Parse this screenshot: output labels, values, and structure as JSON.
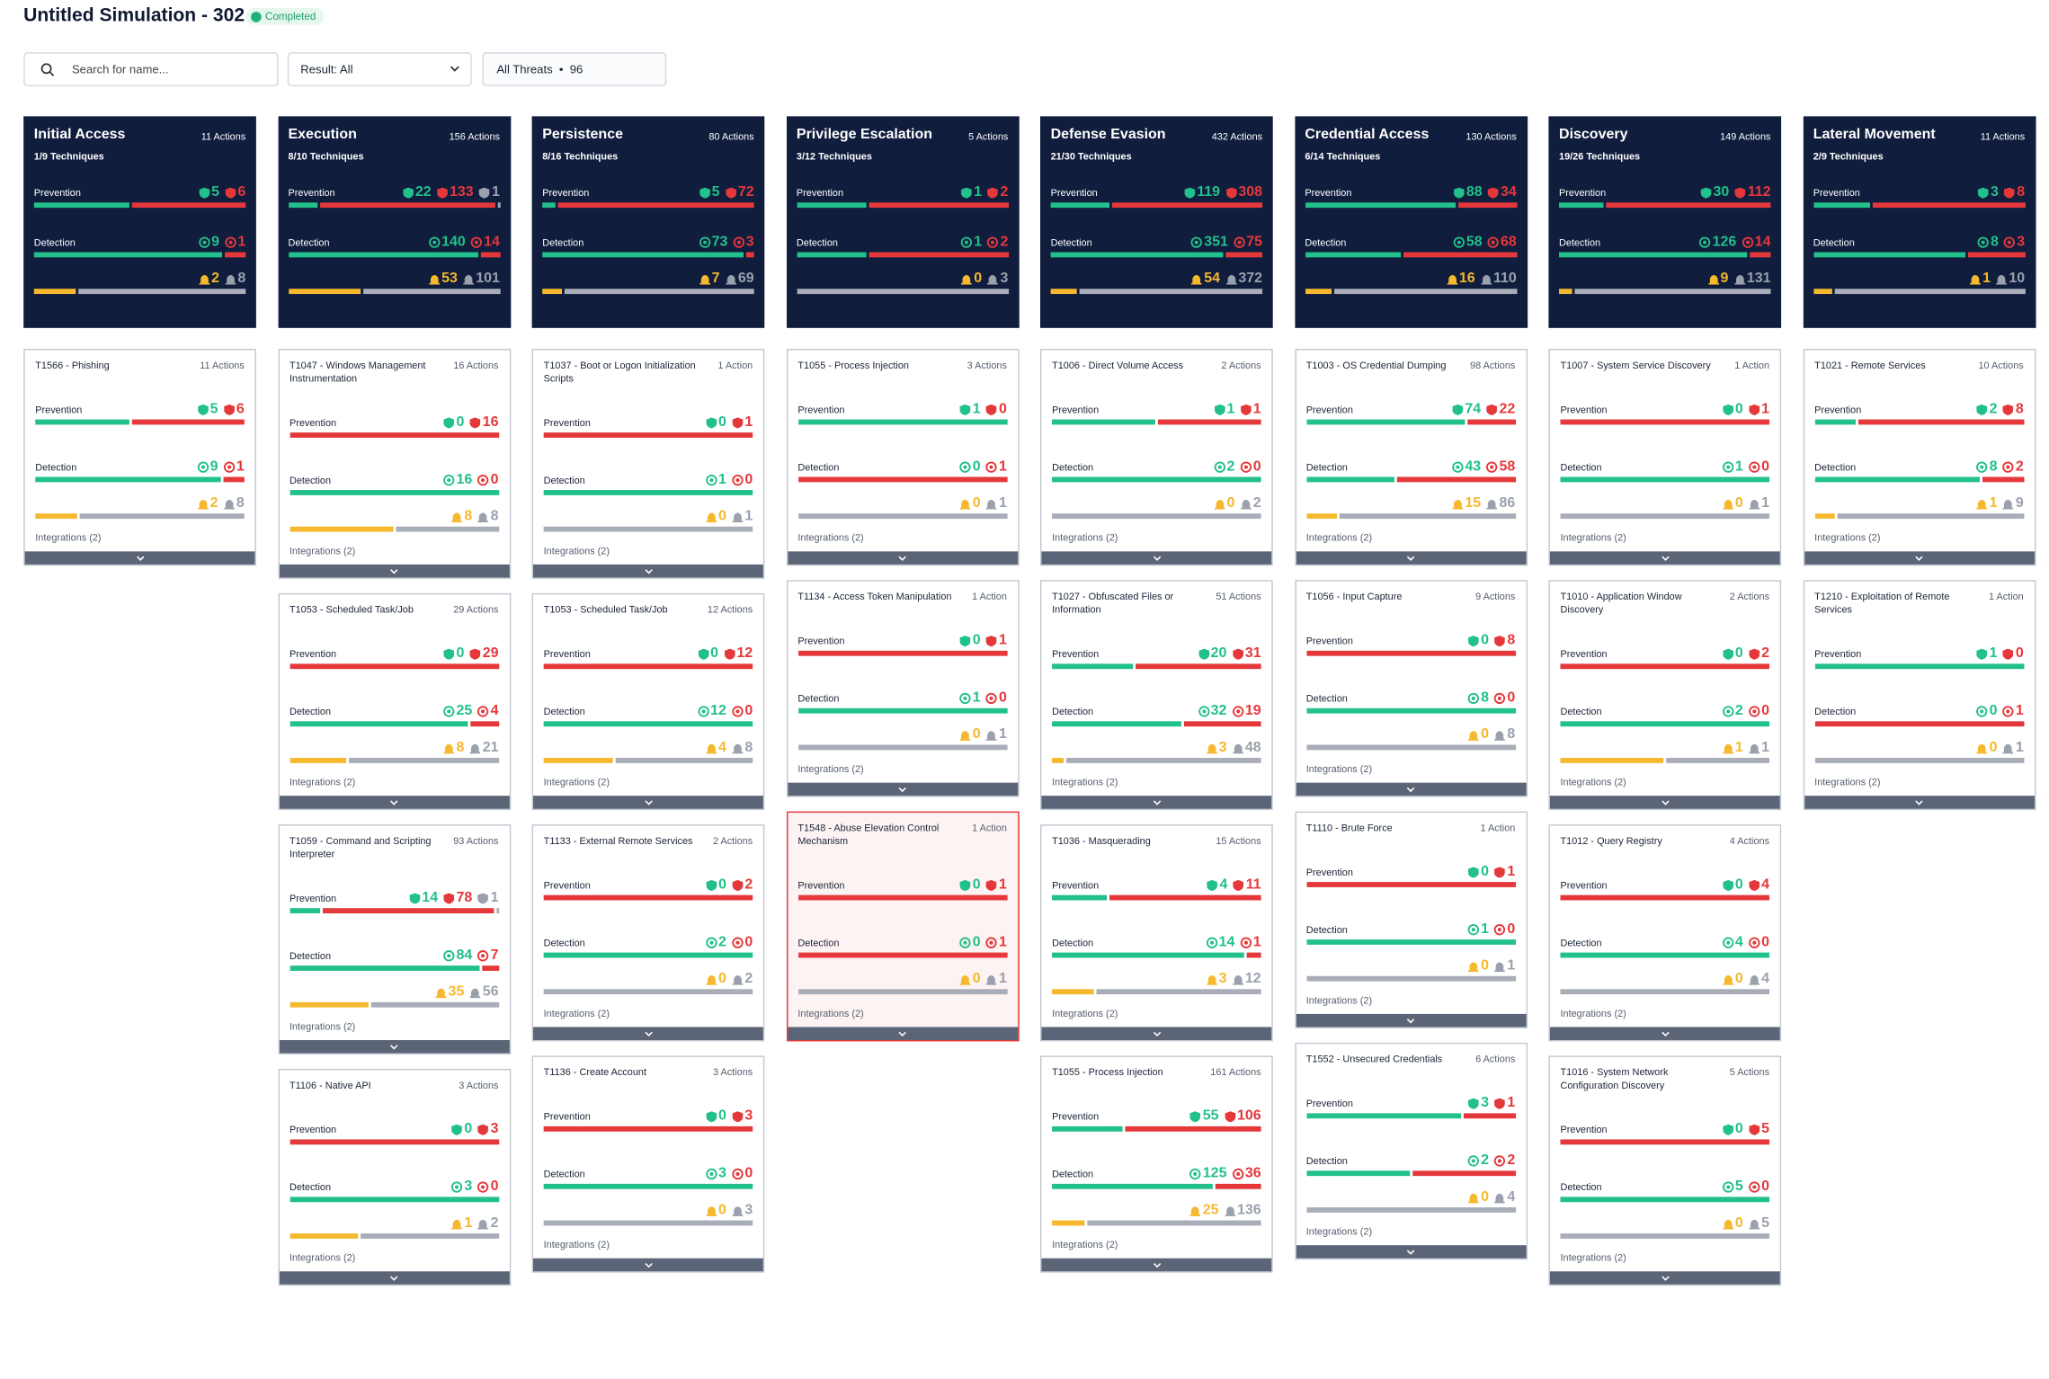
{
  "header": {
    "title": "Untitled Simulation - 302",
    "status": "Completed"
  },
  "toolbar": {
    "search_placeholder": "Search for name...",
    "result_filter": "Result: All",
    "threats_filter": "All Threats",
    "threats_count": "96"
  },
  "labels": {
    "prevention": "Prevention",
    "detection": "Detection",
    "integrations": "Integrations (2)"
  },
  "columns": [
    {
      "name": "Initial Access",
      "actions": "11 Actions",
      "techniques": "1/9 Techniques",
      "prevention": [
        5,
        6
      ],
      "detection": [
        9,
        1
      ],
      "alerts": [
        2,
        8
      ],
      "cards": [
        {
          "title": "T1566 - Phishing",
          "actions": "11 Actions",
          "prevention": [
            5,
            6
          ],
          "detection": [
            9,
            1
          ],
          "alerts": [
            2,
            8
          ]
        }
      ]
    },
    {
      "name": "Execution",
      "actions": "156 Actions",
      "techniques": "8/10 Techniques",
      "prevention": [
        22,
        133,
        1
      ],
      "detection": [
        140,
        14
      ],
      "alerts": [
        53,
        101
      ],
      "cards": [
        {
          "title": "T1047 - Windows Management Instrumentation",
          "actions": "16 Actions",
          "prevention": [
            0,
            16
          ],
          "detection": [
            16,
            0
          ],
          "alerts": [
            8,
            8
          ]
        },
        {
          "title": "T1053 - Scheduled Task/Job",
          "actions": "29 Actions",
          "prevention": [
            0,
            29
          ],
          "detection": [
            25,
            4
          ],
          "alerts": [
            8,
            21
          ]
        },
        {
          "title": "T1059 - Command and Scripting Interpreter",
          "actions": "93 Actions",
          "prevention": [
            14,
            78,
            1
          ],
          "detection": [
            84,
            7
          ],
          "alerts": [
            35,
            56
          ]
        },
        {
          "title": "T1106 - Native API",
          "actions": "3 Actions",
          "prevention": [
            0,
            3
          ],
          "detection": [
            3,
            0
          ],
          "alerts": [
            1,
            2
          ]
        }
      ]
    },
    {
      "name": "Persistence",
      "actions": "80 Actions",
      "techniques": "8/16 Techniques",
      "prevention": [
        5,
        72
      ],
      "detection": [
        73,
        3
      ],
      "alerts": [
        7,
        69
      ],
      "cards": [
        {
          "title": "T1037 - Boot or Logon Initialization Scripts",
          "actions": "1 Action",
          "prevention": [
            0,
            1
          ],
          "detection": [
            1,
            0
          ],
          "alerts": [
            0,
            1
          ]
        },
        {
          "title": "T1053 - Scheduled Task/Job",
          "actions": "12 Actions",
          "prevention": [
            0,
            12
          ],
          "detection": [
            12,
            0
          ],
          "alerts": [
            4,
            8
          ]
        },
        {
          "title": "T1133 - External Remote Services",
          "actions": "2 Actions",
          "prevention": [
            0,
            2
          ],
          "detection": [
            2,
            0
          ],
          "alerts": [
            0,
            2
          ]
        },
        {
          "title": "T1136 - Create Account",
          "actions": "3 Actions",
          "prevention": [
            0,
            3
          ],
          "detection": [
            3,
            0
          ],
          "alerts": [
            0,
            3
          ]
        }
      ]
    },
    {
      "name": "Privilege Escalation",
      "actions": "5 Actions",
      "techniques": "3/12 Techniques",
      "prevention": [
        1,
        2
      ],
      "detection": [
        1,
        2
      ],
      "alerts": [
        0,
        3
      ],
      "cards": [
        {
          "title": "T1055 - Process Injection",
          "actions": "3 Actions",
          "prevention": [
            1,
            0
          ],
          "detection": [
            0,
            1
          ],
          "alerts": [
            0,
            1
          ]
        },
        {
          "title": "T1134 - Access Token Manipulation",
          "actions": "1 Action",
          "prevention": [
            0,
            1
          ],
          "detection": [
            1,
            0
          ],
          "alerts": [
            0,
            1
          ]
        },
        {
          "title": "T1548 - Abuse Elevation Control Mechanism",
          "actions": "1 Action",
          "prevention": [
            0,
            1
          ],
          "detection": [
            0,
            1
          ],
          "alerts": [
            0,
            1
          ],
          "selected": true
        }
      ]
    },
    {
      "name": "Defense Evasion",
      "actions": "432 Actions",
      "techniques": "21/30 Techniques",
      "prevention": [
        119,
        308
      ],
      "detection": [
        351,
        75
      ],
      "alerts": [
        54,
        372
      ],
      "cards": [
        {
          "title": "T1006 - Direct Volume Access",
          "actions": "2 Actions",
          "prevention": [
            1,
            1
          ],
          "detection": [
            2,
            0
          ],
          "alerts": [
            0,
            2
          ]
        },
        {
          "title": "T1027 - Obfuscated Files or Information",
          "actions": "51 Actions",
          "prevention": [
            20,
            31
          ],
          "detection": [
            32,
            19
          ],
          "alerts": [
            3,
            48
          ]
        },
        {
          "title": "T1036 - Masquerading",
          "actions": "15 Actions",
          "prevention": [
            4,
            11
          ],
          "detection": [
            14,
            1
          ],
          "alerts": [
            3,
            12
          ]
        },
        {
          "title": "T1055 - Process Injection",
          "actions": "161 Actions",
          "prevention": [
            55,
            106
          ],
          "detection": [
            125,
            36
          ],
          "alerts": [
            25,
            136
          ]
        }
      ]
    },
    {
      "name": "Credential Access",
      "actions": "130 Actions",
      "techniques": "6/14 Techniques",
      "prevention": [
        88,
        34
      ],
      "detection": [
        58,
        68
      ],
      "alerts": [
        16,
        110
      ],
      "cards": [
        {
          "title": "T1003 - OS Credential Dumping",
          "actions": "98 Actions",
          "prevention": [
            74,
            22
          ],
          "detection": [
            43,
            58
          ],
          "alerts": [
            15,
            86
          ]
        },
        {
          "title": "T1056 - Input Capture",
          "actions": "9 Actions",
          "prevention": [
            0,
            8
          ],
          "detection": [
            8,
            0
          ],
          "alerts": [
            0,
            8
          ]
        },
        {
          "title": "T1110 - Brute Force",
          "actions": "1 Action",
          "prevention": [
            0,
            1
          ],
          "detection": [
            1,
            0
          ],
          "alerts": [
            0,
            1
          ]
        },
        {
          "title": "T1552 - Unsecured Credentials",
          "actions": "6 Actions",
          "prevention": [
            3,
            1
          ],
          "detection": [
            2,
            2
          ],
          "alerts": [
            0,
            4
          ]
        }
      ]
    },
    {
      "name": "Discovery",
      "actions": "149 Actions",
      "techniques": "19/26 Techniques",
      "prevention": [
        30,
        112
      ],
      "detection": [
        126,
        14
      ],
      "alerts": [
        9,
        131
      ],
      "cards": [
        {
          "title": "T1007 - System Service Discovery",
          "actions": "1 Action",
          "prevention": [
            0,
            1
          ],
          "detection": [
            1,
            0
          ],
          "alerts": [
            0,
            1
          ]
        },
        {
          "title": "T1010 - Application Window Discovery",
          "actions": "2 Actions",
          "prevention": [
            0,
            2
          ],
          "detection": [
            2,
            0
          ],
          "alerts": [
            1,
            1
          ]
        },
        {
          "title": "T1012 - Query Registry",
          "actions": "4 Actions",
          "prevention": [
            0,
            4
          ],
          "detection": [
            4,
            0
          ],
          "alerts": [
            0,
            4
          ]
        },
        {
          "title": "T1016 - System Network Configuration Discovery",
          "actions": "5 Actions",
          "prevention": [
            0,
            5
          ],
          "detection": [
            5,
            0
          ],
          "alerts": [
            0,
            5
          ]
        }
      ]
    },
    {
      "name": "Lateral Movement",
      "actions": "11 Actions",
      "techniques": "2/9 Techniques",
      "prevention": [
        3,
        8
      ],
      "detection": [
        8,
        3
      ],
      "alerts": [
        1,
        10
      ],
      "cards": [
        {
          "title": "T1021 - Remote Services",
          "actions": "10 Actions",
          "prevention": [
            2,
            8
          ],
          "detection": [
            8,
            2
          ],
          "alerts": [
            1,
            9
          ]
        },
        {
          "title": "T1210 - Exploitation of Remote Services",
          "actions": "1 Action",
          "prevention": [
            1,
            0
          ],
          "detection": [
            0,
            1
          ],
          "alerts": [
            0,
            1
          ]
        }
      ]
    }
  ]
}
